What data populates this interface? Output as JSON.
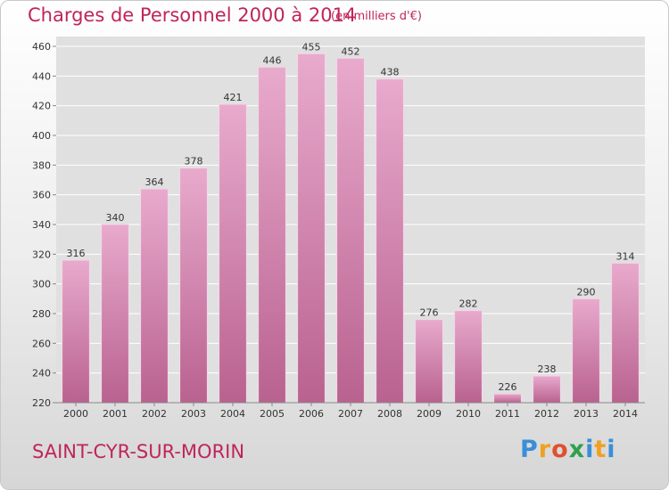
{
  "title": "Charges de Personnel 2000 à 2014",
  "subtitle": "(en milliers d'€)",
  "commune": "SAINT-CYR-SUR-MORIN",
  "logo_text": "Proxiti",
  "colors": {
    "bar": "#c97aa6",
    "bar_light": "#e6a8cb",
    "accent": "#c0245c",
    "grid": "#ffffff"
  },
  "chart_data": {
    "type": "bar",
    "title": "Charges de Personnel 2000 à 2014",
    "subtitle": "(en milliers d'€)",
    "categories": [
      "2000",
      "2001",
      "2002",
      "2003",
      "2004",
      "2005",
      "2006",
      "2007",
      "2008",
      "2009",
      "2010",
      "2011",
      "2012",
      "2013",
      "2014"
    ],
    "values": [
      316,
      340,
      364,
      378,
      421,
      446,
      455,
      452,
      438,
      276,
      282,
      226,
      238,
      290,
      314
    ],
    "ylim": [
      220,
      460
    ],
    "yticks": [
      220,
      240,
      260,
      280,
      300,
      320,
      340,
      360,
      380,
      400,
      420,
      440,
      460
    ],
    "grid": true,
    "legend": "none"
  }
}
